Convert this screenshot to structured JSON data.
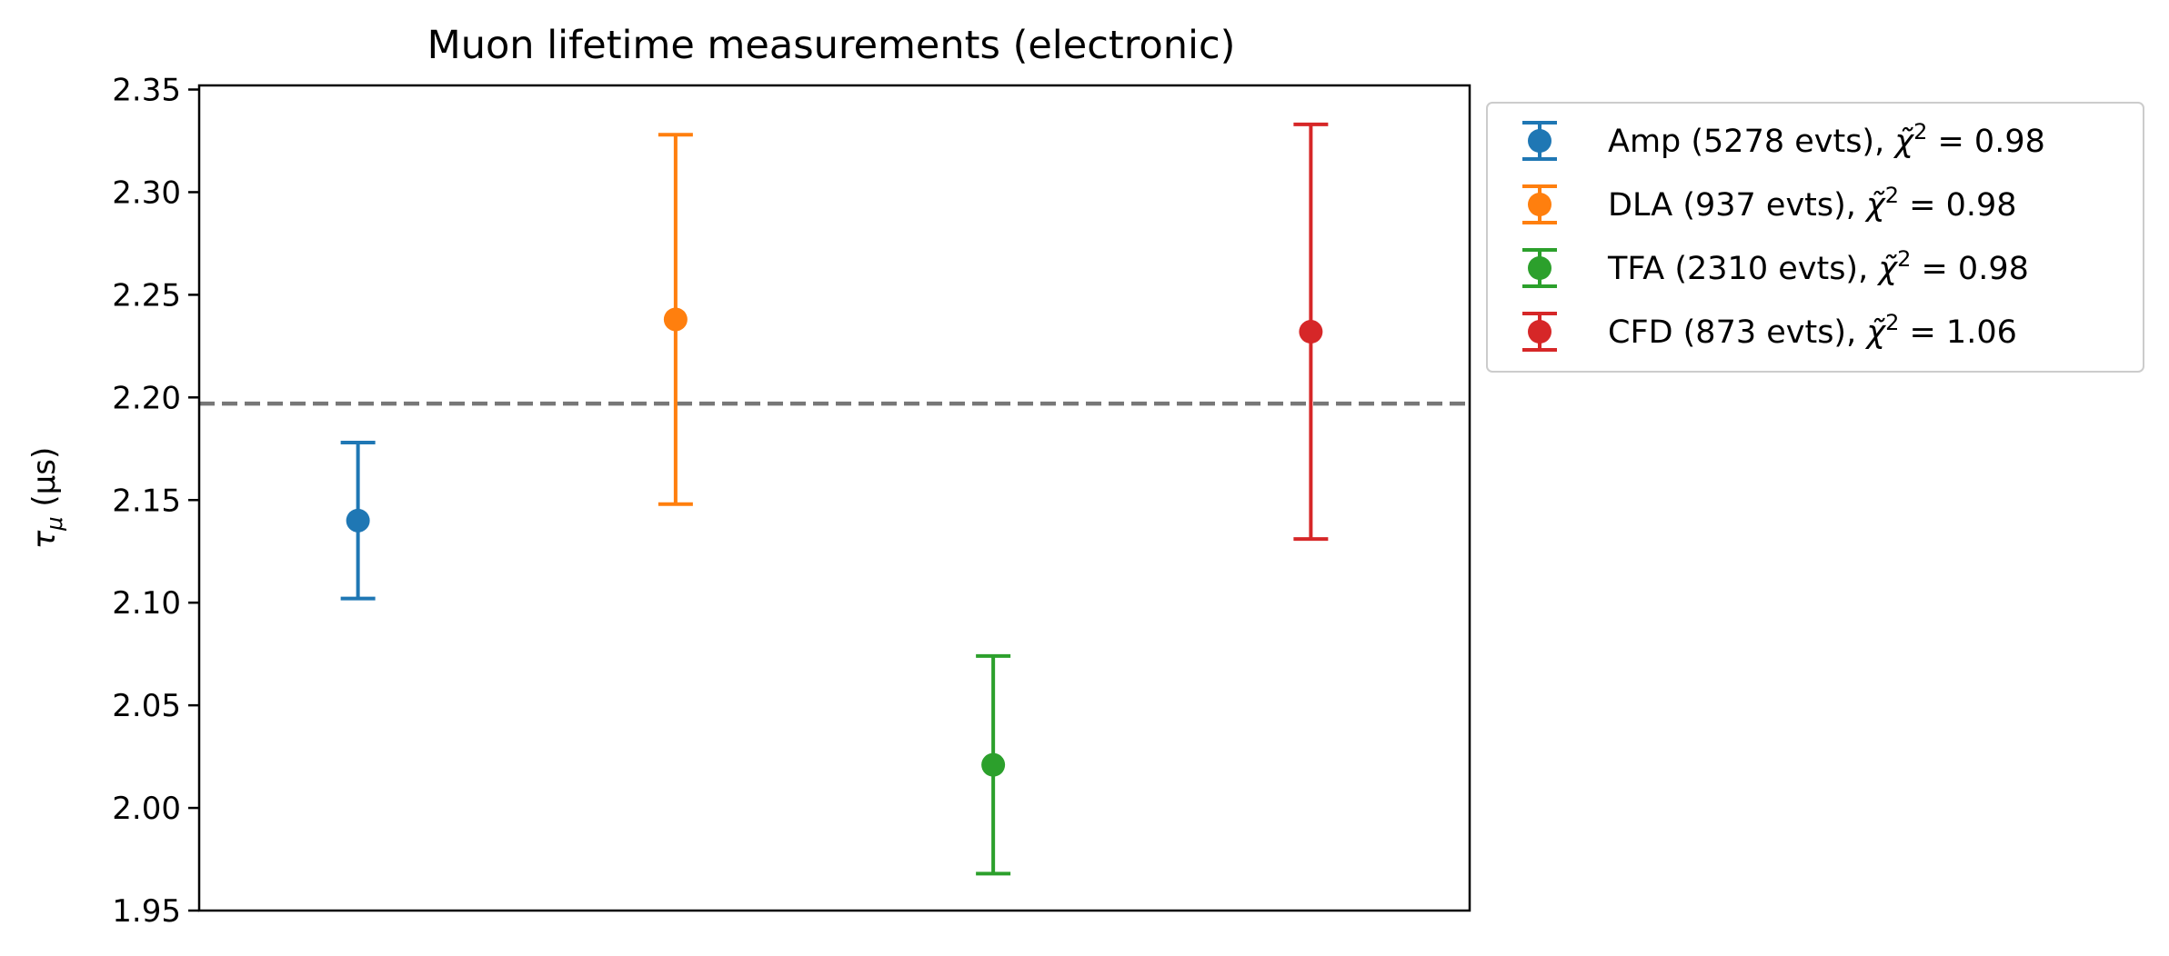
{
  "chart_data": {
    "type": "scatter",
    "title": "Muon lifetime measurements (electronic)",
    "xlabel": "",
    "ylabel": "τ",
    "ylabel_subscript": "μ",
    "ylabel_unit": " (μs)",
    "ylim": [
      1.95,
      2.352
    ],
    "xlim": [
      -0.5,
      3.5
    ],
    "yticks": [
      "1.95",
      "2.00",
      "2.05",
      "2.10",
      "2.15",
      "2.20",
      "2.25",
      "2.30",
      "2.35"
    ],
    "ytick_values": [
      1.95,
      2.0,
      2.05,
      2.1,
      2.15,
      2.2,
      2.25,
      2.3,
      2.35
    ],
    "grid": false,
    "legend_position": "outside upper-right",
    "reference_line": {
      "y": 2.197,
      "style": "dashed",
      "color": "#777777"
    },
    "series": [
      {
        "name": "Amp (5278 evts), χ̃² = 0.98",
        "label_main": "Amp (5278 evts), ",
        "label_value": " = 0.98",
        "x": 0,
        "y": 2.14,
        "err": 0.038,
        "color": "#1f77b4"
      },
      {
        "name": "DLA (937 evts), χ̃² = 0.98",
        "label_main": "DLA (937 evts), ",
        "label_value": " = 0.98",
        "x": 1,
        "y": 2.238,
        "err": 0.09,
        "color": "#ff7f0e"
      },
      {
        "name": "TFA (2310 evts), χ̃² = 0.98",
        "label_main": "TFA (2310 evts), ",
        "label_value": " = 0.98",
        "x": 2,
        "y": 2.021,
        "err": 0.053,
        "color": "#2ca02c"
      },
      {
        "name": "CFD (873 evts), χ̃² = 1.06",
        "label_main": "CFD (873 evts), ",
        "label_value": " = 1.06",
        "x": 3,
        "y": 2.232,
        "err": 0.101,
        "color": "#d62728"
      }
    ]
  }
}
